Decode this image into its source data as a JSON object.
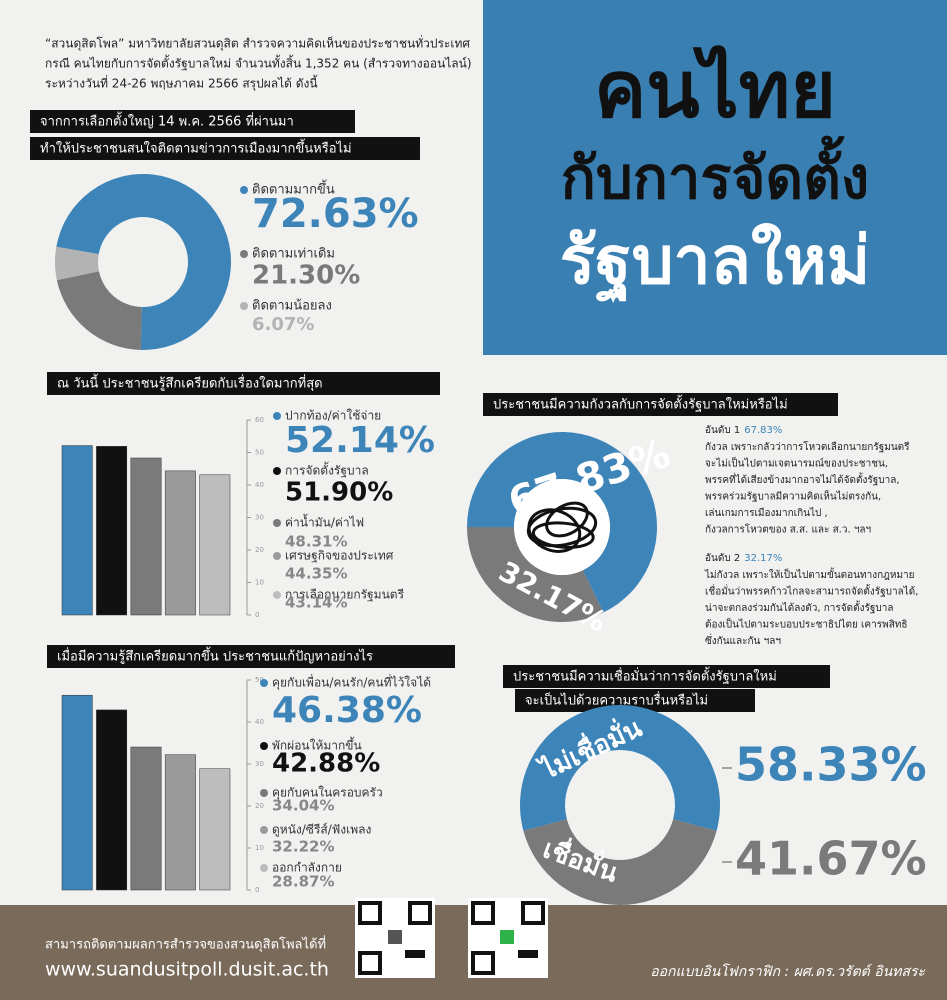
{
  "header": {
    "intro": [
      "“สวนดุสิตโพล” มหาวิทยาลัยสวนดุสิต สำรวจความคิดเห็นของประชาชนทั่วประเทศ",
      "กรณี คนไทยกับการจัดตั้งรัฐบาลใหม่ จำนวนทั้งสิ้น 1,352 คน (สำรวจทางออนไลน์)",
      "ระหว่างวันที่ 24-26 พฤษภาคม 2566 สรุปผลได้ ดังนี้"
    ],
    "title": [
      "คนไทย",
      "กับการจัดตั้ง",
      "รัฐบาลใหม่"
    ]
  },
  "chart_data": [
    {
      "type": "donut",
      "title": [
        "จากการเลือกตั้งใหญ่ 14 พ.ค. 2566 ที่ผ่านมา",
        "ทำให้ประชาชนสนใจติดตามข่าวการเมืองมากขึ้นหรือไม่"
      ],
      "categories": [
        "ติดตามมากขึ้น",
        "ติดตามเท่าเดิม",
        "ติดตามน้อยลง"
      ],
      "values": [
        72.63,
        21.3,
        6.07
      ],
      "value_labels": [
        "72.63%",
        "21.30%",
        "6.07%"
      ],
      "colors": [
        "#3d84b8",
        "#7a7a7a",
        "#b3b3b3"
      ]
    },
    {
      "type": "bar",
      "title": [
        "ณ วันนี้ ประชาชนรู้สึกเครียดกับเรื่องใดมากที่สุด"
      ],
      "categories": [
        "ปากท้อง/ค่าใช้จ่าย",
        "การจัดตั้งรัฐบาล",
        "ค่าน้ำมัน/ค่าไฟ",
        "เศรษฐกิจของประเทศ",
        "การเลือกนายกรัฐมนตรี"
      ],
      "values": [
        52.14,
        51.9,
        48.31,
        44.35,
        43.14
      ],
      "value_labels": [
        "52.14%",
        "51.90%",
        "48.31%",
        "44.35%",
        "43.14%"
      ],
      "colors": [
        "#3d84b8",
        "#111111",
        "#7a7a7a",
        "#9a9a9a",
        "#bdbdbd"
      ],
      "ylim": [
        0,
        60
      ],
      "yticks": [
        0,
        10,
        20,
        30,
        40,
        50,
        60
      ]
    },
    {
      "type": "bar",
      "title": [
        "เมื่อมีความรู้สึกเครียดมากขึ้น ประชาชนแก้ปัญหาอย่างไร"
      ],
      "categories": [
        "คุยกับเพื่อน/คนรัก/คนที่ไว้ใจได้",
        "พักผ่อนให้มากขึ้น",
        "คุยกับคนในครอบครัว",
        "ดูหนัง/ซีรีส์/ฟังเพลง",
        "ออกกำลังกาย"
      ],
      "values": [
        46.38,
        42.88,
        34.04,
        32.22,
        28.87
      ],
      "value_labels": [
        "46.38%",
        "42.88%",
        "34.04%",
        "32.22%",
        "28.87%"
      ],
      "colors": [
        "#3d84b8",
        "#111111",
        "#7a7a7a",
        "#9a9a9a",
        "#bdbdbd"
      ],
      "ylim": [
        0,
        50
      ],
      "yticks": [
        0,
        10,
        20,
        30,
        40,
        50
      ]
    },
    {
      "type": "donut",
      "title": [
        "ประชาชนมีความกังวลกับการจัดตั้งรัฐบาลใหม่หรือไม่"
      ],
      "categories": [
        "อันดับ 1",
        "อันดับ 2"
      ],
      "values": [
        67.83,
        32.17
      ],
      "value_labels": [
        "67.83%",
        "32.17%"
      ],
      "colors": [
        "#3d84b8",
        "#7a7a7a"
      ],
      "descriptions": [
        [
          "กังวล เพราะกลัวว่าการโหวตเลือกนายกรัฐมนตรี",
          "จะไม่เป็นไปตามเจตนารมณ์ของประชาชน,",
          "พรรคที่ได้เสียงข้างมากอาจไม่ได้จัดตั้งรัฐบาล,",
          "พรรคร่วมรัฐบาลมีความคิดเห็นไม่ตรงกัน,",
          "เล่นเกมการเมืองมากเกินไป ,",
          "กังวลการโหวตของ ส.ส. และ ส.ว. ฯลฯ"
        ],
        [
          "ไม่กังวล เพราะให้เป็นไปตามขั้นตอนทางกฎหมาย",
          "เชื่อมั่นว่าพรรคก้าวไกลจะสามารถจัดตั้งรัฐบาลได้,",
          "น่าจะตกลงร่วมกันได้ลงตัว, การจัดตั้งรัฐบาล",
          "ต้องเป็นไปตามระบอบประชาธิปไตย เคารพสิทธิ",
          "ซึ่งกันและกัน ฯลฯ"
        ]
      ]
    },
    {
      "type": "donut",
      "title": [
        "ประชาชนมีความเชื่อมั่นว่าการจัดตั้งรัฐบาลใหม่",
        "จะเป็นไปด้วยความราบรื่นหรือไม่"
      ],
      "categories": [
        "ไม่เชื่อมั่น",
        "เชื่อมั่น"
      ],
      "values": [
        58.33,
        41.67
      ],
      "value_labels": [
        "58.33%",
        "41.67%"
      ],
      "colors": [
        "#3d84b8",
        "#7a7a7a"
      ]
    }
  ],
  "footer": {
    "note": "สามารถติดตามผลการสำรวจของสวนดุสิตโพลได้ที่",
    "url": "www.suandusitpoll.dusit.ac.th",
    "credit": "ออกแบบอินโฟกราฟิก : ผศ.ดร.วรัตต์ อินทสระ"
  }
}
